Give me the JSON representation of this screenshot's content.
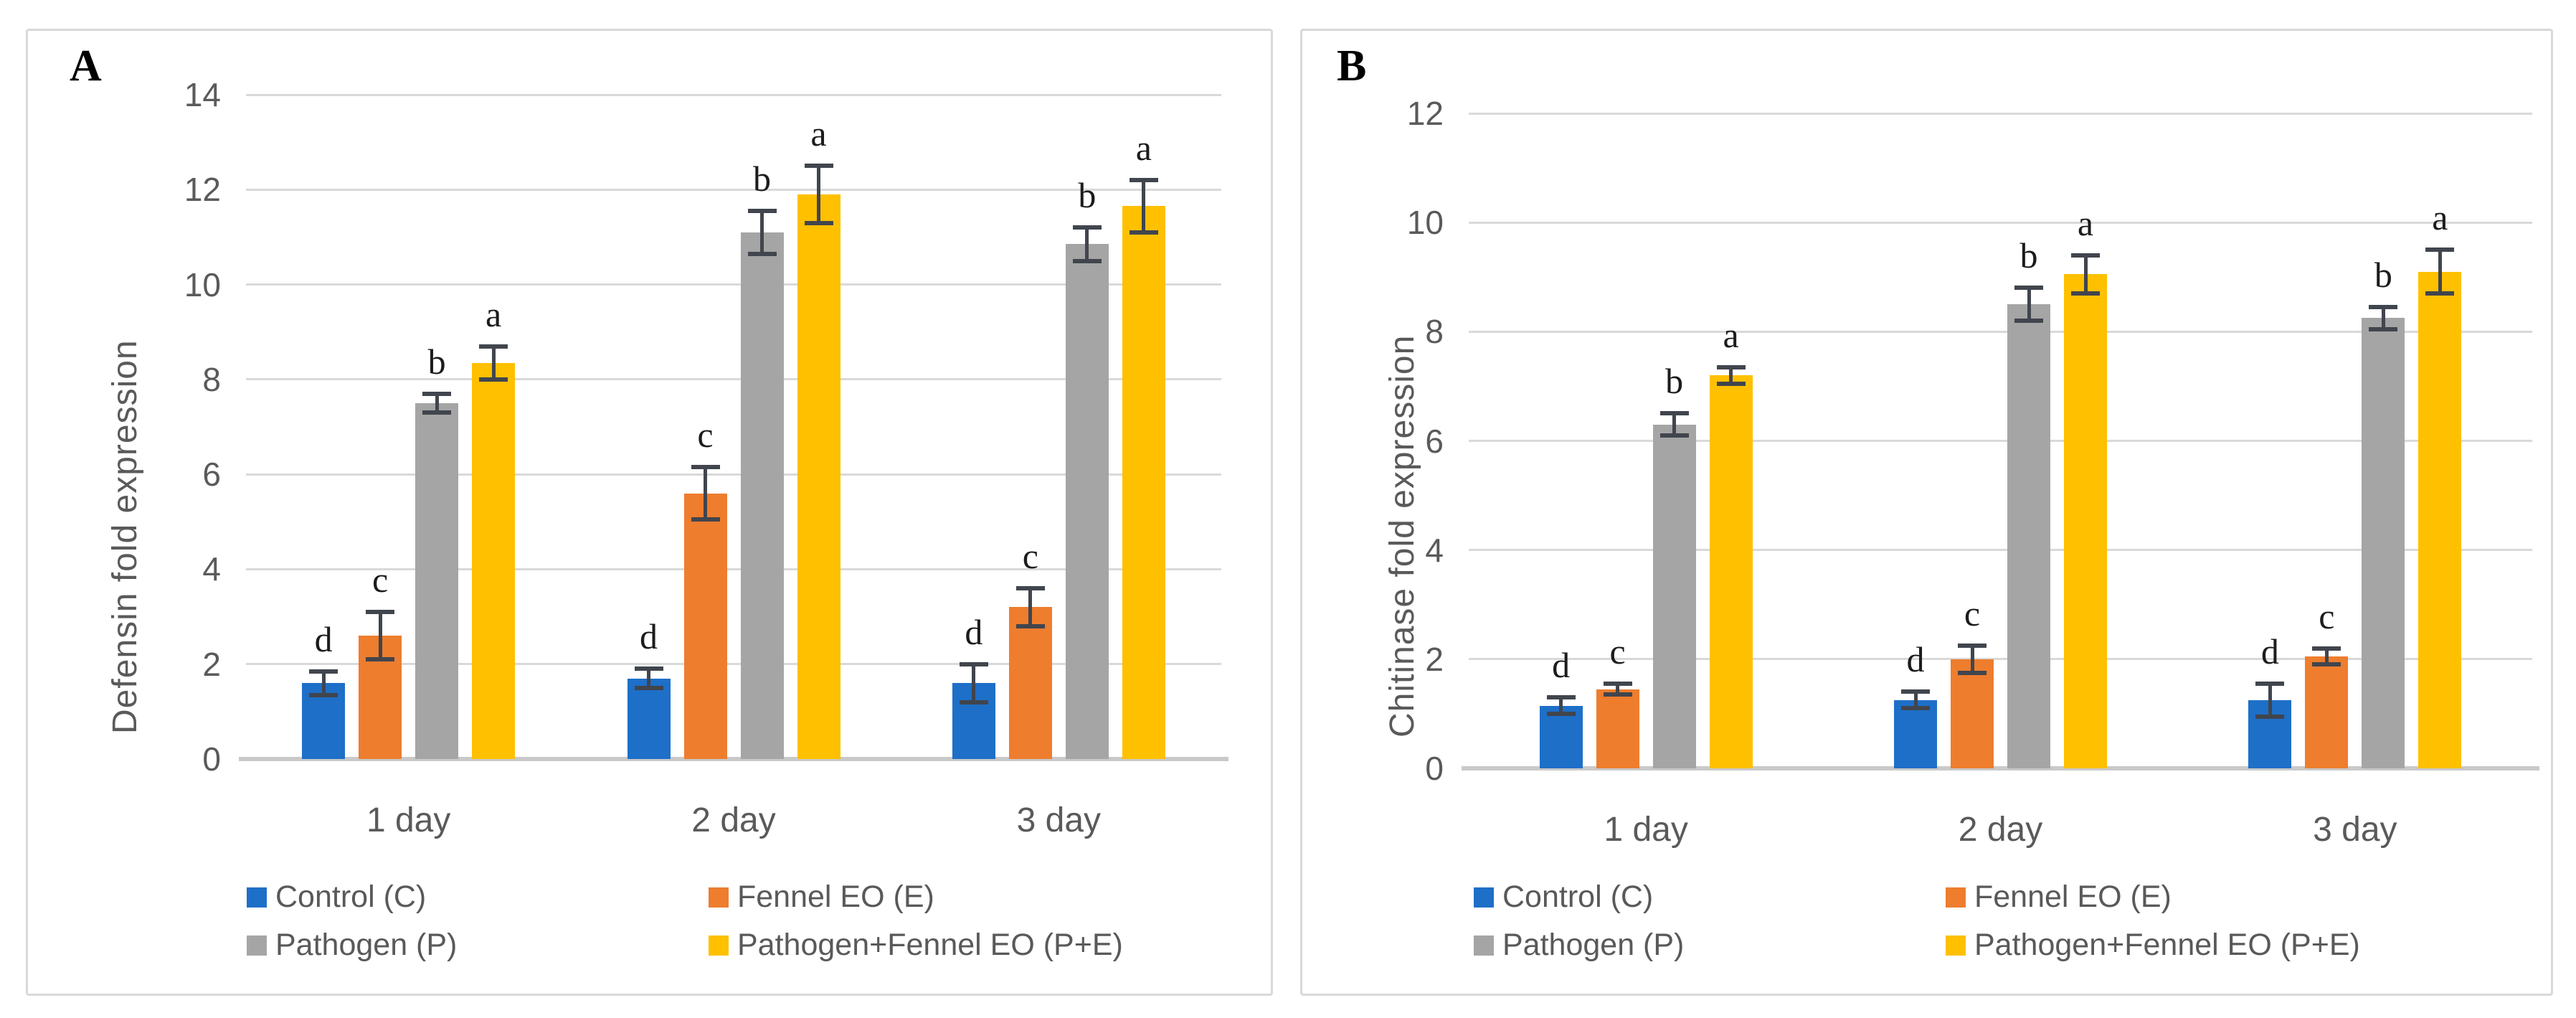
{
  "figure_title": "",
  "chart_data": [
    {
      "type": "bar",
      "panel_label": "A",
      "ylabel": "Defensin fold expression",
      "xlabel": "",
      "categories": [
        "1 day",
        "2 day",
        "3 day"
      ],
      "ylim": [
        0,
        14
      ],
      "ytick_step": 2,
      "grid": true,
      "legend_position": "bottom",
      "error_bars": true,
      "series": [
        {
          "name": "Control (C)",
          "color": "#1e6fc8",
          "values": [
            1.6,
            1.7,
            1.6
          ],
          "errors": [
            0.25,
            0.2,
            0.4
          ],
          "sig_letters": [
            "d",
            "d",
            "d"
          ]
        },
        {
          "name": "Fennel EO (E)",
          "color": "#ee7d2e",
          "values": [
            2.6,
            5.6,
            3.2
          ],
          "errors": [
            0.5,
            0.55,
            0.4
          ],
          "sig_letters": [
            "c",
            "c",
            "c"
          ]
        },
        {
          "name": "Pathogen (P)",
          "color": "#a5a5a5",
          "values": [
            7.5,
            11.1,
            10.85
          ],
          "errors": [
            0.2,
            0.45,
            0.35
          ],
          "sig_letters": [
            "b",
            "b",
            "b"
          ]
        },
        {
          "name": "Pathogen+Fennel EO (P+E)",
          "color": "#ffc000",
          "values": [
            8.35,
            11.9,
            11.65
          ],
          "errors": [
            0.35,
            0.6,
            0.55
          ],
          "sig_letters": [
            "a",
            "a",
            "a"
          ]
        }
      ]
    },
    {
      "type": "bar",
      "panel_label": "B",
      "ylabel": "Chitinase fold expression",
      "xlabel": "",
      "categories": [
        "1 day",
        "2 day",
        "3 day"
      ],
      "ylim": [
        0,
        12
      ],
      "ytick_step": 2,
      "grid": true,
      "legend_position": "bottom",
      "error_bars": true,
      "series": [
        {
          "name": "Control (C)",
          "color": "#1e6fc8",
          "values": [
            1.15,
            1.25,
            1.25
          ],
          "errors": [
            0.15,
            0.15,
            0.3
          ],
          "sig_letters": [
            "d",
            "d",
            "d"
          ]
        },
        {
          "name": "Fennel EO (E)",
          "color": "#ee7d2e",
          "values": [
            1.45,
            2.0,
            2.05
          ],
          "errors": [
            0.1,
            0.25,
            0.15
          ],
          "sig_letters": [
            "c",
            "c",
            "c"
          ]
        },
        {
          "name": "Pathogen (P)",
          "color": "#a5a5a5",
          "values": [
            6.3,
            8.5,
            8.25
          ],
          "errors": [
            0.2,
            0.3,
            0.2
          ],
          "sig_letters": [
            "b",
            "b",
            "b"
          ]
        },
        {
          "name": "Pathogen+Fennel EO (P+E)",
          "color": "#ffc000",
          "values": [
            7.2,
            9.05,
            9.1
          ],
          "errors": [
            0.15,
            0.35,
            0.4
          ],
          "sig_letters": [
            "a",
            "a",
            "a"
          ]
        }
      ]
    }
  ]
}
